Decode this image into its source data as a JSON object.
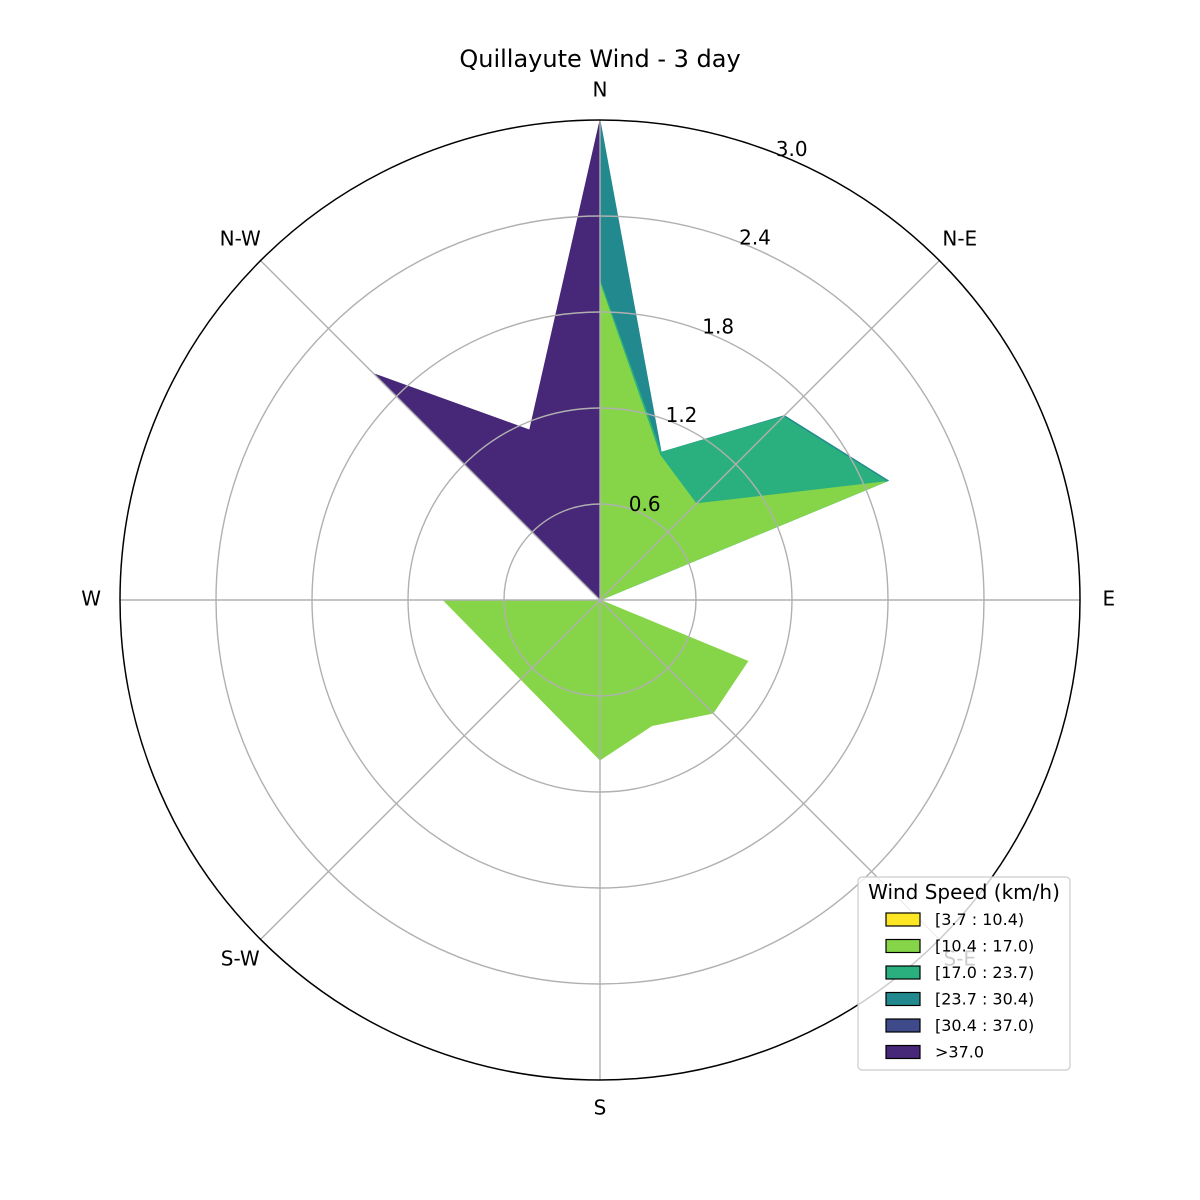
{
  "chart_data": {
    "type": "windrose",
    "title": "Quillayute Wind - 3 day",
    "directions": [
      "N",
      "N-E",
      "E",
      "S-E",
      "S",
      "S-W",
      "W",
      "N-W"
    ],
    "r_ticks": [
      "0.6",
      "1.2",
      "1.8",
      "2.4",
      "3.0"
    ],
    "r_max": 3.0,
    "legend": {
      "title": "Wind Speed (km/h)",
      "placement": "lower-right",
      "items": [
        {
          "label": "[3.7 : 10.4)",
          "color": "#fde725"
        },
        {
          "label": "[10.4 : 17.0)",
          "color": "#86d549"
        },
        {
          "label": "[17.0 : 23.7)",
          "color": "#2ab07f"
        },
        {
          "label": "[23.7 : 30.4)",
          "color": "#22898e"
        },
        {
          "label": "[30.4 : 37.0)",
          "color": "#3e4a89"
        },
        {
          "label": ">37.0",
          "color": "#472777"
        }
      ]
    },
    "series": [
      {
        "name": ">37.0",
        "color": "#472777",
        "points": [
          [
            0,
            3.0
          ],
          [
            22.5,
            0.2
          ],
          [
            45,
            0.0
          ],
          [
            90,
            0.0
          ],
          [
            135,
            0.0
          ],
          [
            157.5,
            0.0
          ],
          [
            180,
            0.0
          ],
          [
            270,
            0.0
          ],
          [
            315,
            2.0
          ],
          [
            337.5,
            1.15
          ]
        ]
      },
      {
        "name": "[30.4 : 37.0)",
        "color": "#3e4a89",
        "points": [
          [
            0,
            3.0
          ],
          [
            22.5,
            0.2
          ],
          [
            45,
            0.0
          ],
          [
            90,
            0.0
          ],
          [
            135,
            0.0
          ],
          [
            157.5,
            0.0
          ],
          [
            180,
            0.0
          ],
          [
            270,
            0.0
          ],
          [
            315,
            1.99
          ],
          [
            337.5,
            0.0
          ]
        ]
      },
      {
        "name": "[23.7 : 30.4)",
        "color": "#22898e",
        "points": [
          [
            0,
            3.0
          ],
          [
            22.5,
            1.0
          ],
          [
            45,
            1.63
          ],
          [
            67.5,
            1.95
          ],
          [
            90,
            0.0
          ],
          [
            135,
            0.0
          ],
          [
            157.5,
            0.0
          ],
          [
            180,
            0.0
          ],
          [
            270,
            0.0
          ],
          [
            315,
            1.98
          ],
          [
            337.5,
            0.0
          ]
        ]
      },
      {
        "name": "[17.0 : 23.7)",
        "color": "#2ab07f",
        "points": [
          [
            0,
            2.0
          ],
          [
            22.5,
            1.0
          ],
          [
            45,
            1.62
          ],
          [
            67.5,
            1.94
          ],
          [
            90,
            0.0
          ],
          [
            135,
            0.0
          ],
          [
            157.5,
            0.0
          ],
          [
            180,
            0.0
          ],
          [
            270,
            0.0
          ],
          [
            315,
            0.0
          ],
          [
            337.5,
            0.0
          ]
        ]
      },
      {
        "name": "[10.4 : 17.0)",
        "color": "#86d549",
        "points": [
          [
            0,
            1.98
          ],
          [
            22.5,
            0.98
          ],
          [
            45,
            0.85
          ],
          [
            67.5,
            1.93
          ],
          [
            90,
            0.0
          ],
          [
            112.5,
            1.0
          ],
          [
            135,
            1.0
          ],
          [
            157.5,
            0.85
          ],
          [
            180,
            1.0
          ],
          [
            270,
            0.98
          ],
          [
            315,
            0.0
          ],
          [
            337.5,
            0.0
          ]
        ]
      }
    ]
  }
}
